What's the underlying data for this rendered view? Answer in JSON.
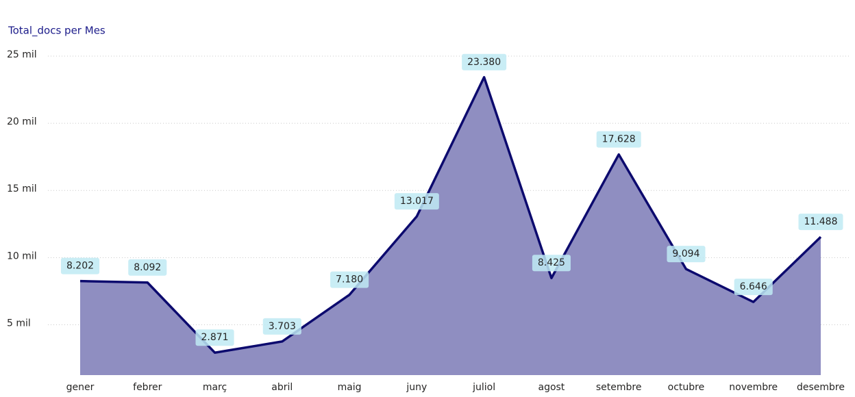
{
  "chart_data": {
    "type": "area",
    "title": "Total_docs per Mes",
    "categories": [
      "gener",
      "febrer",
      "març",
      "abril",
      "maig",
      "juny",
      "juliol",
      "agost",
      "setembre",
      "octubre",
      "novembre",
      "desembre"
    ],
    "values": [
      8202,
      8092,
      2871,
      3703,
      7180,
      13017,
      23380,
      8425,
      17628,
      9094,
      6646,
      11488
    ],
    "value_labels": [
      "8.202",
      "8.092",
      "2.871",
      "3.703",
      "7.180",
      "13.017",
      "23.380",
      "8.425",
      "17.628",
      "9.094",
      "6.646",
      "11.488"
    ],
    "color": "#0c0a6e",
    "fill": "#8f8ec1",
    "ylim": [
      1200,
      25000
    ],
    "yticks": [
      {
        "value": 5000,
        "label": "5 mil"
      },
      {
        "value": 10000,
        "label": "10 mil"
      },
      {
        "value": 15000,
        "label": "15 mil"
      },
      {
        "value": 20000,
        "label": "20 mil"
      },
      {
        "value": 25000,
        "label": "25 mil"
      }
    ],
    "grid": true
  }
}
